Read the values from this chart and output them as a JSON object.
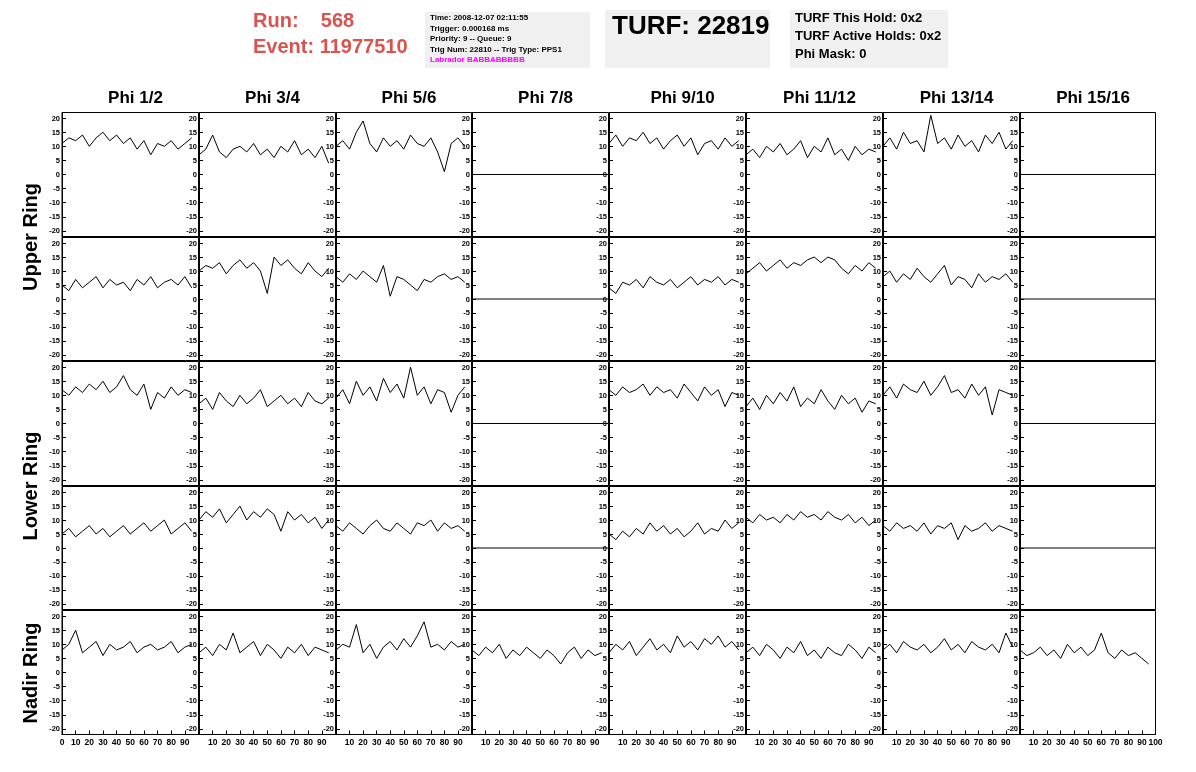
{
  "chart_data": [
    {
      "type": "line",
      "title": "Phi 1/2",
      "ylabel": "Upper Ring",
      "annotations": [
        "Run:    568",
        "Event: 11977510",
        "Time: 2008-12-07 02:11:55",
        "Trigger: 0.000168 ms",
        "Priority: 9 -- Queue: 9",
        "Trig Num: 22810 -- Trig Type: PPS1",
        "Labrador BABBABBBBB",
        "TURF: 22819",
        "TURF This Hold: 0x2",
        "TURF Active Holds: 0x2",
        "Phi Mask: 0"
      ],
      "tick_labels": "y",
      "marker": "none",
      "color": "#000000",
      "xlim": [
        0,
        100
      ],
      "ylim": [
        -22,
        22
      ],
      "yticks": [
        -20,
        -15,
        -10,
        -5,
        0,
        5,
        10,
        15,
        20
      ],
      "x": [
        0,
        5,
        10,
        15,
        20,
        25,
        30,
        35,
        40,
        45,
        50,
        55,
        60,
        65,
        70,
        75,
        80,
        85,
        90,
        95
      ],
      "values": [
        11,
        13,
        12,
        14,
        10,
        13,
        15,
        12,
        14,
        11,
        13,
        9,
        12,
        7,
        11,
        10,
        12,
        9,
        11,
        13
      ]
    },
    {
      "type": "line",
      "title": "Phi 3/4",
      "tick_labels": "y",
      "marker": "none",
      "color": "#000000",
      "xlim": [
        0,
        100
      ],
      "ylim": [
        -22,
        22
      ],
      "yticks": [
        -20,
        -15,
        -10,
        -5,
        0,
        5,
        10,
        15,
        20
      ],
      "x": [
        0,
        5,
        10,
        15,
        20,
        25,
        30,
        35,
        40,
        45,
        50,
        55,
        60,
        65,
        70,
        75,
        80,
        85,
        90,
        95
      ],
      "values": [
        7,
        9,
        14,
        8,
        6,
        9,
        10,
        8,
        11,
        7,
        9,
        6,
        10,
        8,
        12,
        7,
        9,
        6,
        10,
        4
      ]
    },
    {
      "type": "line",
      "title": "Phi 5/6",
      "tick_labels": "y",
      "marker": "none",
      "color": "#000000",
      "xlim": [
        0,
        100
      ],
      "ylim": [
        -22,
        22
      ],
      "yticks": [
        -20,
        -15,
        -10,
        -5,
        0,
        5,
        10,
        15,
        20
      ],
      "x": [
        0,
        5,
        10,
        15,
        20,
        25,
        30,
        35,
        40,
        45,
        50,
        55,
        60,
        65,
        70,
        75,
        80,
        85,
        90,
        95
      ],
      "values": [
        10,
        12,
        9,
        15,
        19,
        11,
        8,
        13,
        10,
        12,
        9,
        14,
        11,
        10,
        13,
        8,
        1,
        11,
        13,
        10
      ]
    },
    {
      "type": "line",
      "title": "Phi 7/8",
      "tick_labels": "y",
      "marker": "none",
      "color": "#000000",
      "xlim": [
        0,
        100
      ],
      "ylim": [
        -22,
        22
      ],
      "yticks": [
        -20,
        -15,
        -10,
        -5,
        0,
        5,
        10,
        15,
        20
      ],
      "x": [
        0,
        100
      ],
      "values": [
        0,
        0
      ]
    },
    {
      "type": "line",
      "title": "Phi 9/10",
      "tick_labels": "y",
      "marker": "none",
      "color": "#000000",
      "xlim": [
        0,
        100
      ],
      "ylim": [
        -22,
        22
      ],
      "yticks": [
        -20,
        -15,
        -10,
        -5,
        0,
        5,
        10,
        15,
        20
      ],
      "x": [
        0,
        5,
        10,
        15,
        20,
        25,
        30,
        35,
        40,
        45,
        50,
        55,
        60,
        65,
        70,
        75,
        80,
        85,
        90,
        95
      ],
      "values": [
        11,
        14,
        10,
        13,
        12,
        15,
        11,
        13,
        9,
        12,
        14,
        10,
        13,
        7,
        11,
        12,
        9,
        13,
        10,
        12
      ]
    },
    {
      "type": "line",
      "title": "Phi 11/12",
      "tick_labels": "y",
      "marker": "none",
      "color": "#000000",
      "xlim": [
        0,
        100
      ],
      "ylim": [
        -22,
        22
      ],
      "yticks": [
        -20,
        -15,
        -10,
        -5,
        0,
        5,
        10,
        15,
        20
      ],
      "x": [
        0,
        5,
        10,
        15,
        20,
        25,
        30,
        35,
        40,
        45,
        50,
        55,
        60,
        65,
        70,
        75,
        80,
        85,
        90,
        95
      ],
      "values": [
        7,
        9,
        6,
        10,
        8,
        11,
        7,
        9,
        12,
        6,
        10,
        8,
        13,
        7,
        9,
        5,
        10,
        7,
        9,
        8
      ]
    },
    {
      "type": "line",
      "title": "Phi 13/14",
      "tick_labels": "y",
      "marker": "none",
      "color": "#000000",
      "xlim": [
        0,
        100
      ],
      "ylim": [
        -22,
        22
      ],
      "yticks": [
        -20,
        -15,
        -10,
        -5,
        0,
        5,
        10,
        15,
        20
      ],
      "x": [
        0,
        5,
        10,
        15,
        20,
        25,
        30,
        35,
        40,
        45,
        50,
        55,
        60,
        65,
        70,
        75,
        80,
        85,
        90,
        95
      ],
      "values": [
        10,
        13,
        9,
        15,
        11,
        12,
        8,
        21,
        11,
        13,
        9,
        14,
        10,
        12,
        8,
        14,
        11,
        15,
        9,
        12
      ]
    },
    {
      "type": "line",
      "title": "Phi 15/16",
      "tick_labels": "y",
      "marker": "none",
      "color": "#000000",
      "xlim": [
        0,
        100
      ],
      "ylim": [
        -22,
        22
      ],
      "yticks": [
        -20,
        -15,
        -10,
        -5,
        0,
        5,
        10,
        15,
        20
      ],
      "x": [
        0,
        100
      ],
      "values": [
        0,
        0
      ]
    },
    {
      "type": "line",
      "tick_labels": "y",
      "marker": "none",
      "color": "#000000",
      "xlim": [
        0,
        100
      ],
      "ylim": [
        -22,
        22
      ],
      "yticks": [
        -20,
        -15,
        -10,
        -5,
        0,
        5,
        10,
        15,
        20
      ],
      "x": [
        0,
        5,
        10,
        15,
        20,
        25,
        30,
        35,
        40,
        45,
        50,
        55,
        60,
        65,
        70,
        75,
        80,
        85,
        90,
        95
      ],
      "values": [
        5,
        3,
        7,
        4,
        6,
        8,
        4,
        7,
        5,
        6,
        3,
        7,
        5,
        8,
        4,
        6,
        7,
        5,
        8,
        4
      ]
    },
    {
      "type": "line",
      "tick_labels": "y",
      "marker": "none",
      "color": "#000000",
      "xlim": [
        0,
        100
      ],
      "ylim": [
        -22,
        22
      ],
      "yticks": [
        -20,
        -15,
        -10,
        -5,
        0,
        5,
        10,
        15,
        20
      ],
      "x": [
        0,
        5,
        10,
        15,
        20,
        25,
        30,
        35,
        40,
        45,
        50,
        55,
        60,
        65,
        70,
        75,
        80,
        85,
        90,
        95
      ],
      "values": [
        10,
        12,
        11,
        13,
        9,
        12,
        14,
        11,
        13,
        10,
        2,
        15,
        12,
        14,
        11,
        9,
        13,
        10,
        8,
        11
      ]
    },
    {
      "type": "line",
      "tick_labels": "y",
      "marker": "none",
      "color": "#000000",
      "xlim": [
        0,
        100
      ],
      "ylim": [
        -22,
        22
      ],
      "yticks": [
        -20,
        -15,
        -10,
        -5,
        0,
        5,
        10,
        15,
        20
      ],
      "x": [
        0,
        5,
        10,
        15,
        20,
        25,
        30,
        35,
        40,
        45,
        50,
        55,
        60,
        65,
        70,
        75,
        80,
        85,
        90,
        95
      ],
      "values": [
        8,
        6,
        9,
        7,
        10,
        8,
        6,
        12,
        1,
        8,
        7,
        5,
        3,
        7,
        6,
        8,
        9,
        7,
        8,
        6
      ]
    },
    {
      "type": "line",
      "tick_labels": "y",
      "marker": "none",
      "color": "#000000",
      "xlim": [
        0,
        100
      ],
      "ylim": [
        -22,
        22
      ],
      "yticks": [
        -20,
        -15,
        -10,
        -5,
        0,
        5,
        10,
        15,
        20
      ],
      "x": [
        0,
        100
      ],
      "values": [
        0,
        0
      ]
    },
    {
      "type": "line",
      "tick_labels": "y",
      "marker": "none",
      "color": "#000000",
      "xlim": [
        0,
        100
      ],
      "ylim": [
        -22,
        22
      ],
      "yticks": [
        -20,
        -15,
        -10,
        -5,
        0,
        5,
        10,
        15,
        20
      ],
      "x": [
        0,
        5,
        10,
        15,
        20,
        25,
        30,
        35,
        40,
        45,
        50,
        55,
        60,
        65,
        70,
        75,
        80,
        85,
        90,
        95
      ],
      "values": [
        4,
        2,
        6,
        5,
        7,
        4,
        8,
        6,
        5,
        7,
        4,
        6,
        8,
        5,
        7,
        6,
        8,
        5,
        7,
        6
      ]
    },
    {
      "type": "line",
      "tick_labels": "y",
      "marker": "none",
      "color": "#000000",
      "xlim": [
        0,
        100
      ],
      "ylim": [
        -22,
        22
      ],
      "yticks": [
        -20,
        -15,
        -10,
        -5,
        0,
        5,
        10,
        15,
        20
      ],
      "x": [
        0,
        5,
        10,
        15,
        20,
        25,
        30,
        35,
        40,
        45,
        50,
        55,
        60,
        65,
        70,
        75,
        80,
        85,
        90,
        95
      ],
      "values": [
        9,
        11,
        13,
        10,
        12,
        14,
        11,
        13,
        12,
        14,
        15,
        13,
        15,
        14,
        11,
        9,
        12,
        10,
        13,
        11
      ]
    },
    {
      "type": "line",
      "tick_labels": "y",
      "marker": "none",
      "color": "#000000",
      "xlim": [
        0,
        100
      ],
      "ylim": [
        -22,
        22
      ],
      "yticks": [
        -20,
        -15,
        -10,
        -5,
        0,
        5,
        10,
        15,
        20
      ],
      "x": [
        0,
        5,
        10,
        15,
        20,
        25,
        30,
        35,
        40,
        45,
        50,
        55,
        60,
        65,
        70,
        75,
        80,
        85,
        90,
        95
      ],
      "values": [
        8,
        10,
        6,
        9,
        7,
        11,
        8,
        6,
        9,
        12,
        5,
        8,
        7,
        4,
        9,
        6,
        8,
        7,
        9,
        6
      ]
    },
    {
      "type": "line",
      "tick_labels": "y",
      "marker": "none",
      "color": "#000000",
      "xlim": [
        0,
        100
      ],
      "ylim": [
        -22,
        22
      ],
      "yticks": [
        -20,
        -15,
        -10,
        -5,
        0,
        5,
        10,
        15,
        20
      ],
      "x": [
        0,
        100
      ],
      "values": [
        0,
        0
      ]
    },
    {
      "type": "line",
      "ylabel": "Lower Ring",
      "tick_labels": "y",
      "marker": "none",
      "color": "#000000",
      "xlim": [
        0,
        100
      ],
      "ylim": [
        -22,
        22
      ],
      "yticks": [
        -20,
        -15,
        -10,
        -5,
        0,
        5,
        10,
        15,
        20
      ],
      "x": [
        0,
        5,
        10,
        15,
        20,
        25,
        30,
        35,
        40,
        45,
        50,
        55,
        60,
        65,
        70,
        75,
        80,
        85,
        90,
        95
      ],
      "values": [
        12,
        10,
        13,
        11,
        14,
        12,
        15,
        11,
        13,
        17,
        12,
        10,
        14,
        5,
        11,
        9,
        13,
        10,
        12,
        11
      ]
    },
    {
      "type": "line",
      "tick_labels": "y",
      "marker": "none",
      "color": "#000000",
      "xlim": [
        0,
        100
      ],
      "ylim": [
        -22,
        22
      ],
      "yticks": [
        -20,
        -15,
        -10,
        -5,
        0,
        5,
        10,
        15,
        20
      ],
      "x": [
        0,
        5,
        10,
        15,
        20,
        25,
        30,
        35,
        40,
        45,
        50,
        55,
        60,
        65,
        70,
        75,
        80,
        85,
        90,
        95
      ],
      "values": [
        7,
        9,
        5,
        11,
        8,
        6,
        10,
        7,
        9,
        12,
        6,
        8,
        10,
        7,
        9,
        6,
        11,
        8,
        7,
        9
      ]
    },
    {
      "type": "line",
      "tick_labels": "y",
      "marker": "none",
      "color": "#000000",
      "xlim": [
        0,
        100
      ],
      "ylim": [
        -22,
        22
      ],
      "yticks": [
        -20,
        -15,
        -10,
        -5,
        0,
        5,
        10,
        15,
        20
      ],
      "x": [
        0,
        5,
        10,
        15,
        20,
        25,
        30,
        35,
        40,
        45,
        50,
        55,
        60,
        65,
        70,
        75,
        80,
        85,
        90,
        95
      ],
      "values": [
        9,
        12,
        7,
        15,
        10,
        13,
        8,
        16,
        11,
        14,
        9,
        20,
        10,
        13,
        7,
        12,
        11,
        4,
        10,
        13
      ]
    },
    {
      "type": "line",
      "tick_labels": "y",
      "marker": "none",
      "color": "#000000",
      "xlim": [
        0,
        100
      ],
      "ylim": [
        -22,
        22
      ],
      "yticks": [
        -20,
        -15,
        -10,
        -5,
        0,
        5,
        10,
        15,
        20
      ],
      "x": [
        0,
        100
      ],
      "values": [
        0,
        0
      ]
    },
    {
      "type": "line",
      "tick_labels": "y",
      "marker": "none",
      "color": "#000000",
      "xlim": [
        0,
        100
      ],
      "ylim": [
        -22,
        22
      ],
      "yticks": [
        -20,
        -15,
        -10,
        -5,
        0,
        5,
        10,
        15,
        20
      ],
      "x": [
        0,
        5,
        10,
        15,
        20,
        25,
        30,
        35,
        40,
        45,
        50,
        55,
        60,
        65,
        70,
        75,
        80,
        85,
        90,
        95
      ],
      "values": [
        12,
        10,
        13,
        11,
        12,
        14,
        10,
        13,
        11,
        12,
        9,
        14,
        11,
        8,
        13,
        10,
        12,
        6,
        11,
        10
      ]
    },
    {
      "type": "line",
      "tick_labels": "y",
      "marker": "none",
      "color": "#000000",
      "xlim": [
        0,
        100
      ],
      "ylim": [
        -22,
        22
      ],
      "yticks": [
        -20,
        -15,
        -10,
        -5,
        0,
        5,
        10,
        15,
        20
      ],
      "x": [
        0,
        5,
        10,
        15,
        20,
        25,
        30,
        35,
        40,
        45,
        50,
        55,
        60,
        65,
        70,
        75,
        80,
        85,
        90,
        95
      ],
      "values": [
        6,
        9,
        5,
        10,
        7,
        11,
        8,
        13,
        6,
        9,
        7,
        12,
        8,
        5,
        10,
        7,
        9,
        4,
        8,
        7
      ]
    },
    {
      "type": "line",
      "tick_labels": "y",
      "marker": "none",
      "color": "#000000",
      "xlim": [
        0,
        100
      ],
      "ylim": [
        -22,
        22
      ],
      "yticks": [
        -20,
        -15,
        -10,
        -5,
        0,
        5,
        10,
        15,
        20
      ],
      "x": [
        0,
        5,
        10,
        15,
        20,
        25,
        30,
        35,
        40,
        45,
        50,
        55,
        60,
        65,
        70,
        75,
        80,
        85,
        90,
        95
      ],
      "values": [
        10,
        13,
        9,
        14,
        12,
        11,
        15,
        10,
        13,
        17,
        11,
        12,
        9,
        14,
        10,
        13,
        3,
        12,
        11,
        10
      ]
    },
    {
      "type": "line",
      "tick_labels": "y",
      "marker": "none",
      "color": "#000000",
      "xlim": [
        0,
        100
      ],
      "ylim": [
        -22,
        22
      ],
      "yticks": [
        -20,
        -15,
        -10,
        -5,
        0,
        5,
        10,
        15,
        20
      ],
      "x": [
        0,
        100
      ],
      "values": [
        0,
        0
      ]
    },
    {
      "type": "line",
      "tick_labels": "y",
      "marker": "none",
      "color": "#000000",
      "xlim": [
        0,
        100
      ],
      "ylim": [
        -22,
        22
      ],
      "yticks": [
        -20,
        -15,
        -10,
        -5,
        0,
        5,
        10,
        15,
        20
      ],
      "x": [
        0,
        5,
        10,
        15,
        20,
        25,
        30,
        35,
        40,
        45,
        50,
        55,
        60,
        65,
        70,
        75,
        80,
        85,
        90,
        95
      ],
      "values": [
        5,
        7,
        4,
        6,
        8,
        5,
        7,
        4,
        6,
        8,
        5,
        7,
        9,
        6,
        8,
        10,
        5,
        7,
        9,
        6
      ]
    },
    {
      "type": "line",
      "tick_labels": "y",
      "marker": "none",
      "color": "#000000",
      "xlim": [
        0,
        100
      ],
      "ylim": [
        -22,
        22
      ],
      "yticks": [
        -20,
        -15,
        -10,
        -5,
        0,
        5,
        10,
        15,
        20
      ],
      "x": [
        0,
        5,
        10,
        15,
        20,
        25,
        30,
        35,
        40,
        45,
        50,
        55,
        60,
        65,
        70,
        75,
        80,
        85,
        90,
        95
      ],
      "values": [
        10,
        13,
        11,
        14,
        9,
        12,
        15,
        10,
        13,
        11,
        14,
        12,
        6,
        13,
        10,
        12,
        9,
        11,
        7,
        10
      ]
    },
    {
      "type": "line",
      "tick_labels": "y",
      "marker": "none",
      "color": "#000000",
      "xlim": [
        0,
        100
      ],
      "ylim": [
        -22,
        22
      ],
      "yticks": [
        -20,
        -15,
        -10,
        -5,
        0,
        5,
        10,
        15,
        20
      ],
      "x": [
        0,
        5,
        10,
        15,
        20,
        25,
        30,
        35,
        40,
        45,
        50,
        55,
        60,
        65,
        70,
        75,
        80,
        85,
        90,
        95
      ],
      "values": [
        8,
        6,
        9,
        7,
        5,
        8,
        10,
        7,
        6,
        9,
        7,
        5,
        9,
        8,
        10,
        6,
        9,
        7,
        8,
        6
      ]
    },
    {
      "type": "line",
      "tick_labels": "y",
      "marker": "none",
      "color": "#000000",
      "xlim": [
        0,
        100
      ],
      "ylim": [
        -22,
        22
      ],
      "yticks": [
        -20,
        -15,
        -10,
        -5,
        0,
        5,
        10,
        15,
        20
      ],
      "x": [
        0,
        100
      ],
      "values": [
        0,
        0
      ]
    },
    {
      "type": "line",
      "tick_labels": "y",
      "marker": "none",
      "color": "#000000",
      "xlim": [
        0,
        100
      ],
      "ylim": [
        -22,
        22
      ],
      "yticks": [
        -20,
        -15,
        -10,
        -5,
        0,
        5,
        10,
        15,
        20
      ],
      "x": [
        0,
        5,
        10,
        15,
        20,
        25,
        30,
        35,
        40,
        45,
        50,
        55,
        60,
        65,
        70,
        75,
        80,
        85,
        90,
        95
      ],
      "values": [
        5,
        3,
        6,
        4,
        7,
        5,
        9,
        6,
        8,
        5,
        7,
        4,
        6,
        9,
        5,
        7,
        6,
        10,
        7,
        9
      ]
    },
    {
      "type": "line",
      "tick_labels": "y",
      "marker": "none",
      "color": "#000000",
      "xlim": [
        0,
        100
      ],
      "ylim": [
        -22,
        22
      ],
      "yticks": [
        -20,
        -15,
        -10,
        -5,
        0,
        5,
        10,
        15,
        20
      ],
      "x": [
        0,
        5,
        10,
        15,
        20,
        25,
        30,
        35,
        40,
        45,
        50,
        55,
        60,
        65,
        70,
        75,
        80,
        85,
        90,
        95
      ],
      "values": [
        11,
        9,
        12,
        10,
        11,
        9,
        12,
        10,
        13,
        11,
        12,
        10,
        13,
        11,
        10,
        12,
        9,
        11,
        8,
        10
      ]
    },
    {
      "type": "line",
      "tick_labels": "y",
      "marker": "none",
      "color": "#000000",
      "xlim": [
        0,
        100
      ],
      "ylim": [
        -22,
        22
      ],
      "yticks": [
        -20,
        -15,
        -10,
        -5,
        0,
        5,
        10,
        15,
        20
      ],
      "x": [
        0,
        5,
        10,
        15,
        20,
        25,
        30,
        35,
        40,
        45,
        50,
        55,
        60,
        65,
        70,
        75,
        80,
        85,
        90,
        95
      ],
      "values": [
        8,
        6,
        9,
        7,
        8,
        6,
        9,
        5,
        8,
        7,
        9,
        3,
        8,
        6,
        7,
        9,
        6,
        8,
        7,
        6
      ]
    },
    {
      "type": "line",
      "tick_labels": "y",
      "marker": "none",
      "color": "#000000",
      "xlim": [
        0,
        100
      ],
      "ylim": [
        -22,
        22
      ],
      "yticks": [
        -20,
        -15,
        -10,
        -5,
        0,
        5,
        10,
        15,
        20
      ],
      "x": [
        0,
        100
      ],
      "values": [
        0,
        0
      ]
    },
    {
      "type": "line",
      "ylabel": "Nadir Ring",
      "marker": "none",
      "color": "#000000",
      "xlim": [
        0,
        100
      ],
      "ylim": [
        -22,
        22
      ],
      "yticks": [
        -20,
        -15,
        -10,
        -5,
        0,
        5,
        10,
        15,
        20
      ],
      "xticks": [
        0,
        10,
        20,
        30,
        40,
        50,
        60,
        70,
        80,
        90
      ],
      "x": [
        0,
        5,
        10,
        15,
        20,
        25,
        30,
        35,
        40,
        45,
        50,
        55,
        60,
        65,
        70,
        75,
        80,
        85,
        90,
        95
      ],
      "values": [
        8,
        10,
        15,
        7,
        9,
        11,
        6,
        10,
        8,
        9,
        11,
        7,
        9,
        10,
        8,
        9,
        11,
        7,
        9,
        10
      ]
    },
    {
      "type": "line",
      "marker": "none",
      "color": "#000000",
      "xlim": [
        0,
        100
      ],
      "ylim": [
        -22,
        22
      ],
      "yticks": [
        -20,
        -15,
        -10,
        -5,
        0,
        5,
        10,
        15,
        20
      ],
      "xticks": [
        10,
        20,
        30,
        40,
        50,
        60,
        70,
        80,
        90
      ],
      "x": [
        0,
        5,
        10,
        15,
        20,
        25,
        30,
        35,
        40,
        45,
        50,
        55,
        60,
        65,
        70,
        75,
        80,
        85,
        90,
        95
      ],
      "values": [
        7,
        9,
        6,
        10,
        8,
        14,
        7,
        9,
        11,
        6,
        10,
        8,
        5,
        9,
        7,
        10,
        6,
        9,
        8,
        7
      ]
    },
    {
      "type": "line",
      "marker": "none",
      "color": "#000000",
      "xlim": [
        0,
        100
      ],
      "ylim": [
        -22,
        22
      ],
      "yticks": [
        -20,
        -15,
        -10,
        -5,
        0,
        5,
        10,
        15,
        20
      ],
      "xticks": [
        10,
        20,
        30,
        40,
        50,
        60,
        70,
        80,
        90
      ],
      "x": [
        0,
        5,
        10,
        15,
        20,
        25,
        30,
        35,
        40,
        45,
        50,
        55,
        60,
        65,
        70,
        75,
        80,
        85,
        90,
        95
      ],
      "values": [
        8,
        10,
        9,
        17,
        7,
        10,
        5,
        9,
        11,
        8,
        12,
        9,
        13,
        18,
        9,
        10,
        8,
        11,
        9,
        10
      ]
    },
    {
      "type": "line",
      "marker": "none",
      "color": "#000000",
      "xlim": [
        0,
        100
      ],
      "ylim": [
        -22,
        22
      ],
      "yticks": [
        -20,
        -15,
        -10,
        -5,
        0,
        5,
        10,
        15,
        20
      ],
      "xticks": [
        10,
        20,
        30,
        40,
        50,
        60,
        70,
        80,
        90
      ],
      "x": [
        0,
        5,
        10,
        15,
        20,
        25,
        30,
        35,
        40,
        45,
        50,
        55,
        60,
        65,
        70,
        75,
        80,
        85,
        90,
        95
      ],
      "values": [
        8,
        6,
        9,
        7,
        10,
        5,
        8,
        6,
        9,
        7,
        5,
        8,
        6,
        3,
        7,
        9,
        5,
        8,
        6,
        7
      ]
    },
    {
      "type": "line",
      "marker": "none",
      "color": "#000000",
      "xlim": [
        0,
        100
      ],
      "ylim": [
        -22,
        22
      ],
      "yticks": [
        -20,
        -15,
        -10,
        -5,
        0,
        5,
        10,
        15,
        20
      ],
      "xticks": [
        10,
        20,
        30,
        40,
        50,
        60,
        70,
        80,
        90
      ],
      "x": [
        0,
        5,
        10,
        15,
        20,
        25,
        30,
        35,
        40,
        45,
        50,
        55,
        60,
        65,
        70,
        75,
        80,
        85,
        90,
        95
      ],
      "values": [
        7,
        10,
        8,
        11,
        6,
        9,
        12,
        8,
        10,
        7,
        13,
        9,
        11,
        8,
        12,
        10,
        13,
        9,
        11,
        8
      ]
    },
    {
      "type": "line",
      "marker": "none",
      "color": "#000000",
      "xlim": [
        0,
        100
      ],
      "ylim": [
        -22,
        22
      ],
      "yticks": [
        -20,
        -15,
        -10,
        -5,
        0,
        5,
        10,
        15,
        20
      ],
      "xticks": [
        10,
        20,
        30,
        40,
        50,
        60,
        70,
        80,
        90
      ],
      "x": [
        0,
        5,
        10,
        15,
        20,
        25,
        30,
        35,
        40,
        45,
        50,
        55,
        60,
        65,
        70,
        75,
        80,
        85,
        90,
        95
      ],
      "values": [
        7,
        9,
        6,
        10,
        8,
        5,
        9,
        7,
        11,
        6,
        8,
        5,
        9,
        7,
        6,
        10,
        8,
        5,
        9,
        7
      ]
    },
    {
      "type": "line",
      "marker": "none",
      "color": "#000000",
      "xlim": [
        0,
        100
      ],
      "ylim": [
        -22,
        22
      ],
      "yticks": [
        -20,
        -15,
        -10,
        -5,
        0,
        5,
        10,
        15,
        20
      ],
      "xticks": [
        10,
        20,
        30,
        40,
        50,
        60,
        70,
        80,
        90
      ],
      "x": [
        0,
        5,
        10,
        15,
        20,
        25,
        30,
        35,
        40,
        45,
        50,
        55,
        60,
        65,
        70,
        75,
        80,
        85,
        90,
        95
      ],
      "values": [
        8,
        10,
        7,
        11,
        9,
        8,
        10,
        7,
        9,
        12,
        8,
        10,
        7,
        11,
        9,
        8,
        10,
        7,
        14,
        9
      ]
    },
    {
      "type": "line",
      "marker": "none",
      "color": "#000000",
      "xlim": [
        0,
        100
      ],
      "ylim": [
        -22,
        22
      ],
      "yticks": [
        -20,
        -15,
        -10,
        -5,
        0,
        5,
        10,
        15,
        20
      ],
      "xticks": [
        10,
        20,
        30,
        40,
        50,
        60,
        70,
        80,
        90,
        100
      ],
      "x": [
        0,
        5,
        10,
        15,
        20,
        25,
        30,
        35,
        40,
        45,
        50,
        55,
        60,
        65,
        70,
        75,
        80,
        85,
        90,
        95
      ],
      "values": [
        8,
        6,
        7,
        9,
        6,
        8,
        5,
        10,
        7,
        9,
        6,
        8,
        14,
        7,
        5,
        8,
        6,
        7,
        5,
        3
      ]
    }
  ]
}
